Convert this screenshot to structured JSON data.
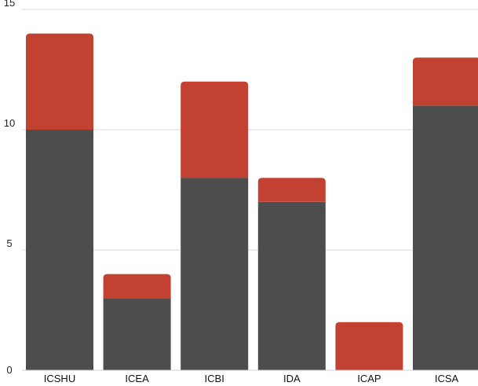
{
  "chart_data": {
    "type": "bar",
    "stacked": true,
    "categories": [
      "ICSHU",
      "ICEA",
      "ICBI",
      "IDA",
      "ICAP",
      "ICSA"
    ],
    "series": [
      {
        "values": [
          10,
          3,
          8,
          7,
          0,
          11
        ],
        "color": "#4d4d4d"
      },
      {
        "values": [
          4,
          1,
          4,
          1,
          2,
          2
        ],
        "color": "#c24130"
      }
    ],
    "yticks": [
      0,
      5,
      10,
      15
    ],
    "ylim": [
      0,
      15
    ],
    "grid": true,
    "legend": "none"
  }
}
